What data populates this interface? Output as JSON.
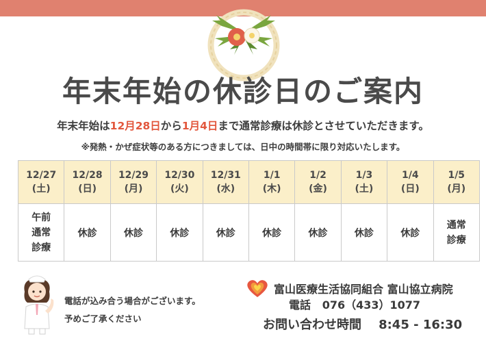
{
  "title": "年末年始の休診日のご案内",
  "lead": {
    "part1": "年末年始は",
    "start": "12月28日",
    "part2": "から",
    "end": "1月4日",
    "part3": "まで通常診療は休診とさせていただきます。"
  },
  "note": "※発熱・かぜ症状等のある方につきましては、日中の時間帯に限り対応いたします。",
  "schedule": {
    "colors": {
      "header_bg": "#fbefc9",
      "closed_text": "#e2573d",
      "border": "#c9c9c9"
    },
    "days": [
      {
        "date": "12/27",
        "weekday": "(土)"
      },
      {
        "date": "12/28",
        "weekday": "(日)"
      },
      {
        "date": "12/29",
        "weekday": "(月)"
      },
      {
        "date": "12/30",
        "weekday": "(火)"
      },
      {
        "date": "12/31",
        "weekday": "(水)"
      },
      {
        "date": "1/1",
        "weekday": "(木)"
      },
      {
        "date": "1/2",
        "weekday": "(金)"
      },
      {
        "date": "1/3",
        "weekday": "(土)"
      },
      {
        "date": "1/4",
        "weekday": "(日)"
      },
      {
        "date": "1/5",
        "weekday": "(月)"
      }
    ],
    "row_label": {
      "line1": "午前",
      "line2": "通常",
      "line3": "診療"
    },
    "cells": [
      "休診",
      "休診",
      "休診",
      "休診",
      "休診",
      "休診",
      "休診",
      "休診"
    ],
    "last_cell": {
      "line1": "通常",
      "line2": "診療"
    }
  },
  "phone_note": {
    "line1": "電話が込み合う場合がございます。",
    "line2": "予めご了承ください"
  },
  "footer": {
    "org": "富山医療生活協同組合 富山協立病院",
    "phone_label": "電話",
    "phone_number": "076（433）1077",
    "hours_label": "お問い合わせ時間",
    "hours_value": "8:45 ‐ 16:30"
  }
}
